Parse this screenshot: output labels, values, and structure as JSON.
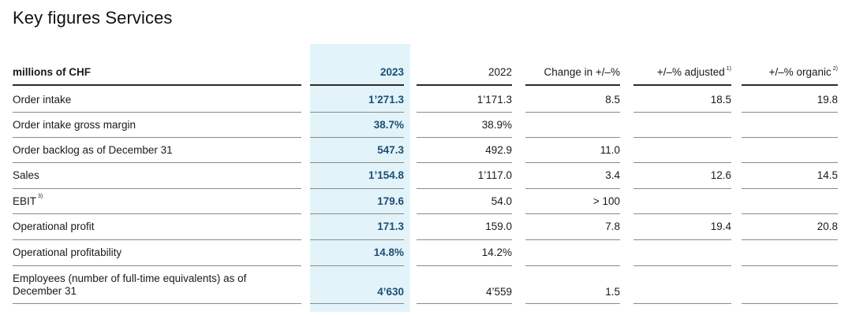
{
  "title": "Key figures Services",
  "columns": {
    "label": "millions of CHF",
    "y2023": "2023",
    "y2022": "2022",
    "change": "Change in +/–%",
    "adjusted": "+/–% adjusted",
    "adjusted_note": "1)",
    "organic": "+/–% organic",
    "organic_note": "2)"
  },
  "rows": [
    {
      "label": "Order intake",
      "note": "",
      "y2023": "1’271.3",
      "y2022": "1’171.3",
      "change": "8.5",
      "adjusted": "18.5",
      "organic": "19.8"
    },
    {
      "label": "Order intake gross margin",
      "note": "",
      "y2023": "38.7%",
      "y2022": "38.9%",
      "change": "",
      "adjusted": "",
      "organic": ""
    },
    {
      "label": "Order backlog as of December 31",
      "note": "",
      "y2023": "547.3",
      "y2022": "492.9",
      "change": "11.0",
      "adjusted": "",
      "organic": ""
    },
    {
      "label": "Sales",
      "note": "",
      "y2023": "1’154.8",
      "y2022": "1’117.0",
      "change": "3.4",
      "adjusted": "12.6",
      "organic": "14.5"
    },
    {
      "label": "EBIT",
      "note": "3)",
      "y2023": "179.6",
      "y2022": "54.0",
      "change": "> 100",
      "adjusted": "",
      "organic": ""
    },
    {
      "label": "Operational profit",
      "note": "",
      "y2023": "171.3",
      "y2022": "159.0",
      "change": "7.8",
      "adjusted": "19.4",
      "organic": "20.8"
    },
    {
      "label": "Operational profitability",
      "note": "",
      "y2023": "14.8%",
      "y2022": "14.2%",
      "change": "",
      "adjusted": "",
      "organic": ""
    },
    {
      "label": "Employees (number of full-time equivalents) as of December 31",
      "note": "",
      "y2023": "4’630",
      "y2022": "4’559",
      "change": "1.5",
      "adjusted": "",
      "organic": ""
    }
  ]
}
